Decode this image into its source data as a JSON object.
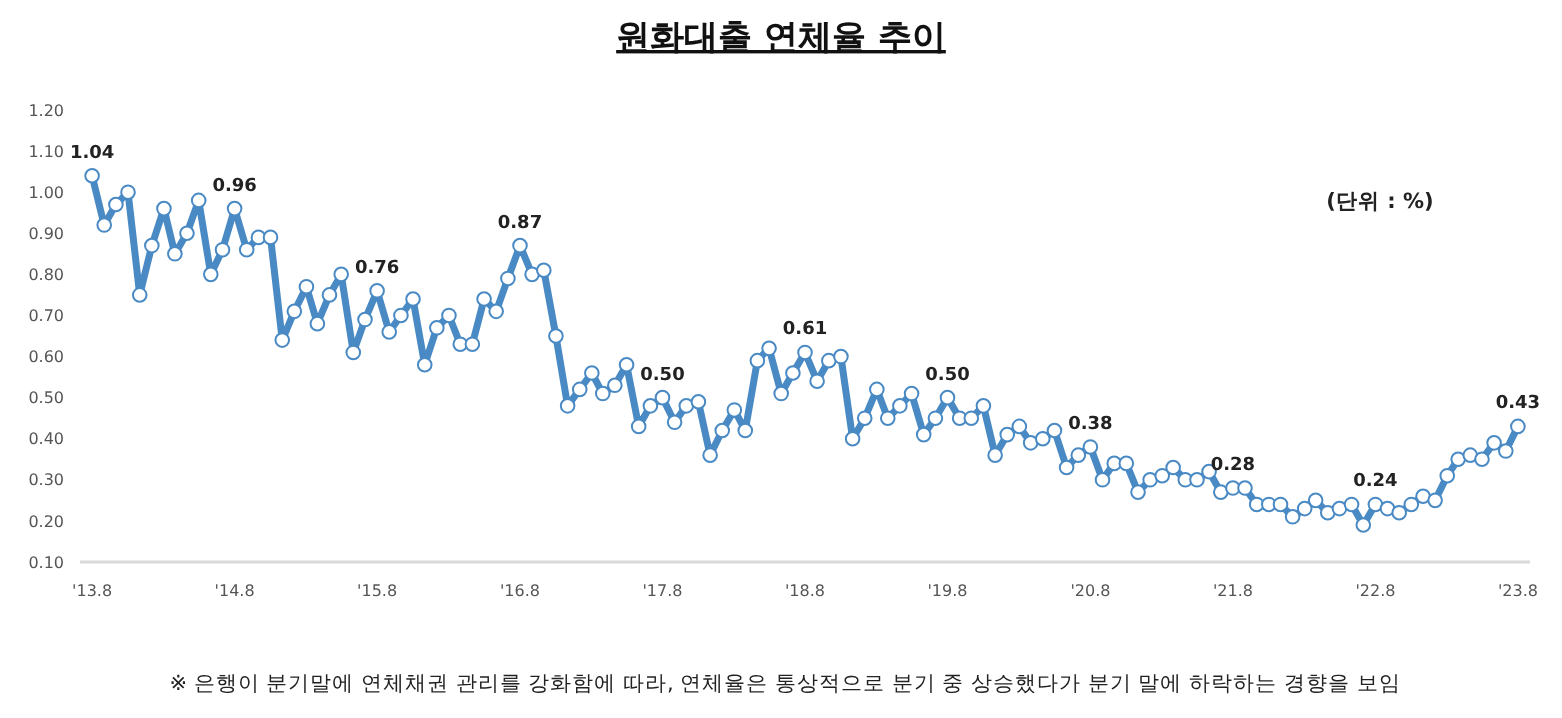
{
  "chart_data": {
    "type": "line",
    "title": "원화대출 연체율 추이",
    "annotations": [
      "(단위 : %)",
      "※ 은행이 분기말에 연체채권 관리를 강화함에 따라, 연체율은 통상적으로 분기 중 상승했다가 분기 말에 하락하는 경향을 보임"
    ],
    "x": [
      "2013-08",
      "2013-09",
      "2013-10",
      "2013-11",
      "2013-12",
      "2014-01",
      "2014-02",
      "2014-03",
      "2014-04",
      "2014-05",
      "2014-06",
      "2014-07",
      "2014-08",
      "2014-09",
      "2014-10",
      "2014-11",
      "2014-12",
      "2015-01",
      "2015-02",
      "2015-03",
      "2015-04",
      "2015-05",
      "2015-06",
      "2015-07",
      "2015-08",
      "2015-09",
      "2015-10",
      "2015-11",
      "2015-12",
      "2016-01",
      "2016-02",
      "2016-03",
      "2016-04",
      "2016-05",
      "2016-06",
      "2016-07",
      "2016-08",
      "2016-09",
      "2016-10",
      "2016-11",
      "2016-12",
      "2017-01",
      "2017-02",
      "2017-03",
      "2017-04",
      "2017-05",
      "2017-06",
      "2017-07",
      "2017-08",
      "2017-09",
      "2017-10",
      "2017-11",
      "2017-12",
      "2018-01",
      "2018-02",
      "2018-03",
      "2018-04",
      "2018-05",
      "2018-06",
      "2018-07",
      "2018-08",
      "2018-09",
      "2018-10",
      "2018-11",
      "2018-12",
      "2019-01",
      "2019-02",
      "2019-03",
      "2019-04",
      "2019-05",
      "2019-06",
      "2019-07",
      "2019-08",
      "2019-09",
      "2019-10",
      "2019-11",
      "2019-12",
      "2020-01",
      "2020-02",
      "2020-03",
      "2020-04",
      "2020-05",
      "2020-06",
      "2020-07",
      "2020-08",
      "2020-09",
      "2020-10",
      "2020-11",
      "2020-12",
      "2021-01",
      "2021-02",
      "2021-03",
      "2021-04",
      "2021-05",
      "2021-06",
      "2021-07",
      "2021-08",
      "2021-09",
      "2021-10",
      "2021-11",
      "2021-12",
      "2022-01",
      "2022-02",
      "2022-03",
      "2022-04",
      "2022-05",
      "2022-06",
      "2022-07",
      "2022-08",
      "2022-09",
      "2022-10",
      "2022-11",
      "2022-12",
      "2023-01",
      "2023-02",
      "2023-03",
      "2023-04",
      "2023-05",
      "2023-06",
      "2023-07",
      "2023-08"
    ],
    "series": [
      {
        "color": "#4a8ac4",
        "values": [
          1.04,
          0.92,
          0.97,
          1.0,
          0.75,
          0.87,
          0.96,
          0.85,
          0.9,
          0.98,
          0.8,
          0.86,
          0.96,
          0.86,
          0.89,
          0.89,
          0.64,
          0.71,
          0.77,
          0.68,
          0.75,
          0.8,
          0.61,
          0.69,
          0.76,
          0.66,
          0.7,
          0.74,
          0.58,
          0.67,
          0.7,
          0.63,
          0.63,
          0.74,
          0.71,
          0.79,
          0.87,
          0.8,
          0.81,
          0.65,
          0.48,
          0.52,
          0.56,
          0.51,
          0.53,
          0.58,
          0.43,
          0.48,
          0.5,
          0.44,
          0.48,
          0.49,
          0.36,
          0.42,
          0.47,
          0.42,
          0.59,
          0.62,
          0.51,
          0.56,
          0.61,
          0.54,
          0.59,
          0.6,
          0.4,
          0.45,
          0.52,
          0.45,
          0.48,
          0.51,
          0.41,
          0.45,
          0.5,
          0.45,
          0.45,
          0.48,
          0.36,
          0.41,
          0.43,
          0.39,
          0.4,
          0.42,
          0.33,
          0.36,
          0.38,
          0.3,
          0.34,
          0.34,
          0.27,
          0.3,
          0.31,
          0.33,
          0.3,
          0.3,
          0.32,
          0.27,
          0.28,
          0.28,
          0.24,
          0.24,
          0.24,
          0.21,
          0.23,
          0.25,
          0.22,
          0.23,
          0.24,
          0.19,
          0.24,
          0.23,
          0.22,
          0.24,
          0.26,
          0.25,
          0.31,
          0.35,
          0.36,
          0.35,
          0.39,
          0.37,
          0.43
        ],
        "value_labels": [
          "1.04",
          null,
          null,
          null,
          null,
          null,
          null,
          null,
          null,
          null,
          null,
          null,
          "0.96",
          null,
          null,
          null,
          null,
          null,
          null,
          null,
          null,
          null,
          null,
          null,
          "0.76",
          null,
          null,
          null,
          null,
          null,
          null,
          null,
          null,
          null,
          null,
          null,
          "0.87",
          null,
          null,
          null,
          null,
          null,
          null,
          null,
          null,
          null,
          null,
          null,
          "0.50",
          null,
          null,
          null,
          null,
          null,
          null,
          null,
          null,
          null,
          null,
          null,
          "0.61",
          null,
          null,
          null,
          null,
          null,
          null,
          null,
          null,
          null,
          null,
          null,
          "0.50",
          null,
          null,
          null,
          null,
          null,
          null,
          null,
          null,
          null,
          null,
          null,
          "0.38",
          null,
          null,
          null,
          null,
          null,
          null,
          null,
          null,
          null,
          null,
          null,
          "0.28",
          null,
          null,
          null,
          null,
          null,
          null,
          null,
          null,
          null,
          null,
          null,
          "0.24",
          null,
          null,
          null,
          null,
          null,
          null,
          null,
          null,
          null,
          null,
          null,
          "0.43"
        ]
      }
    ],
    "xlim": [
      "2013-07",
      "2023-09"
    ],
    "xticks": [
      {
        "value": "2013-08",
        "label": "'13.8"
      },
      {
        "value": "2014-08",
        "label": "'14.8"
      },
      {
        "value": "2015-08",
        "label": "'15.8"
      },
      {
        "value": "2016-08",
        "label": "'16.8"
      },
      {
        "value": "2017-08",
        "label": "'17.8"
      },
      {
        "value": "2018-08",
        "label": "'18.8"
      },
      {
        "value": "2019-08",
        "label": "'19.8"
      },
      {
        "value": "2020-08",
        "label": "'20.8"
      },
      {
        "value": "2021-08",
        "label": "'21.8"
      },
      {
        "value": "2022-08",
        "label": "'22.8"
      },
      {
        "value": "2023-08",
        "label": "'23.8"
      }
    ],
    "ylim": [
      0.1,
      1.2
    ],
    "yticks": [
      {
        "value": 0.1,
        "label": "0.10"
      },
      {
        "value": 0.2,
        "label": "0.20"
      },
      {
        "value": 0.3,
        "label": "0.30"
      },
      {
        "value": 0.4,
        "label": "0.40"
      },
      {
        "value": 0.5,
        "label": "0.50"
      },
      {
        "value": 0.6,
        "label": "0.60"
      },
      {
        "value": 0.7,
        "label": "0.70"
      },
      {
        "value": 0.8,
        "label": "0.80"
      },
      {
        "value": 0.9,
        "label": "0.90"
      },
      {
        "value": 1.0,
        "label": "1.00"
      },
      {
        "value": 1.1,
        "label": "1.10"
      },
      {
        "value": 1.2,
        "label": "1.20"
      }
    ],
    "grid": false,
    "marker": "circle",
    "line_style": "solid"
  }
}
